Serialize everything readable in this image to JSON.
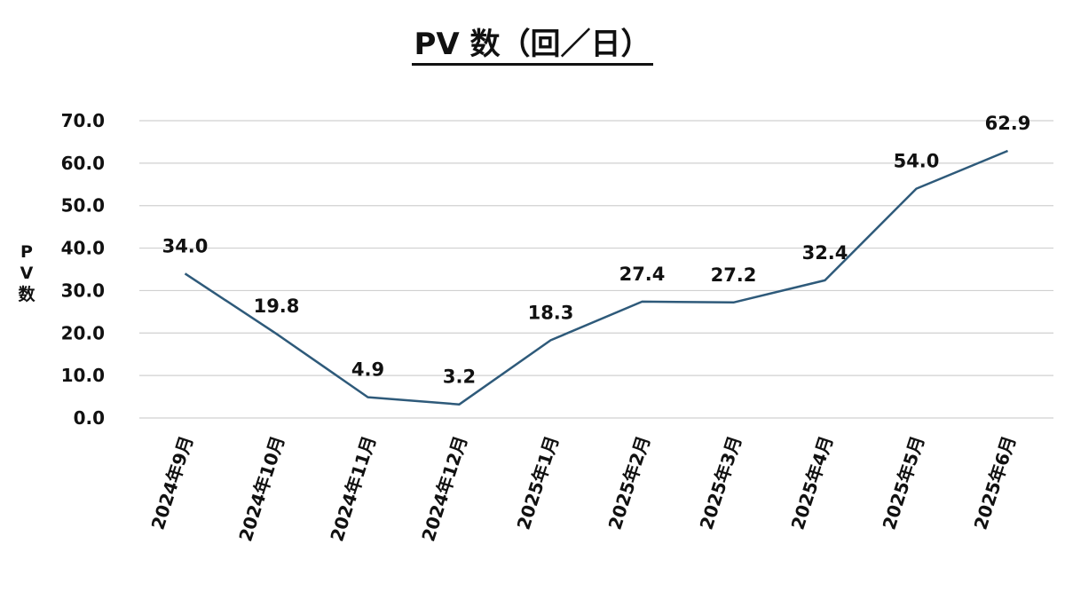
{
  "chart_data": {
    "type": "line",
    "title": "PV 数（回／日）",
    "ylabel": "PV数",
    "xlabel": "",
    "categories": [
      "2024年9月",
      "2024年10月",
      "2024年11月",
      "2024年12月",
      "2025年1月",
      "2025年2月",
      "2025年3月",
      "2025年4月",
      "2025年5月",
      "2025年6月"
    ],
    "series": [
      {
        "values": [
          34.0,
          19.8,
          4.9,
          3.2,
          18.3,
          27.4,
          27.2,
          32.4,
          54.0,
          62.9
        ]
      }
    ],
    "value_labels": [
      "34.0",
      "19.8",
      "4.9",
      "3.2",
      "18.3",
      "27.4",
      "27.2",
      "32.4",
      "54.0",
      "62.9"
    ],
    "ylim": [
      0,
      70
    ],
    "yticks": [
      0,
      10,
      20,
      30,
      40,
      50,
      60,
      70
    ],
    "ytick_labels": [
      "0.0",
      "10.0",
      "20.0",
      "30.0",
      "40.0",
      "50.0",
      "60.0",
      "70.0"
    ],
    "grid": true,
    "legend": "none",
    "line_color": "#2e5a7a",
    "grid_color": "#d0d0d0"
  }
}
